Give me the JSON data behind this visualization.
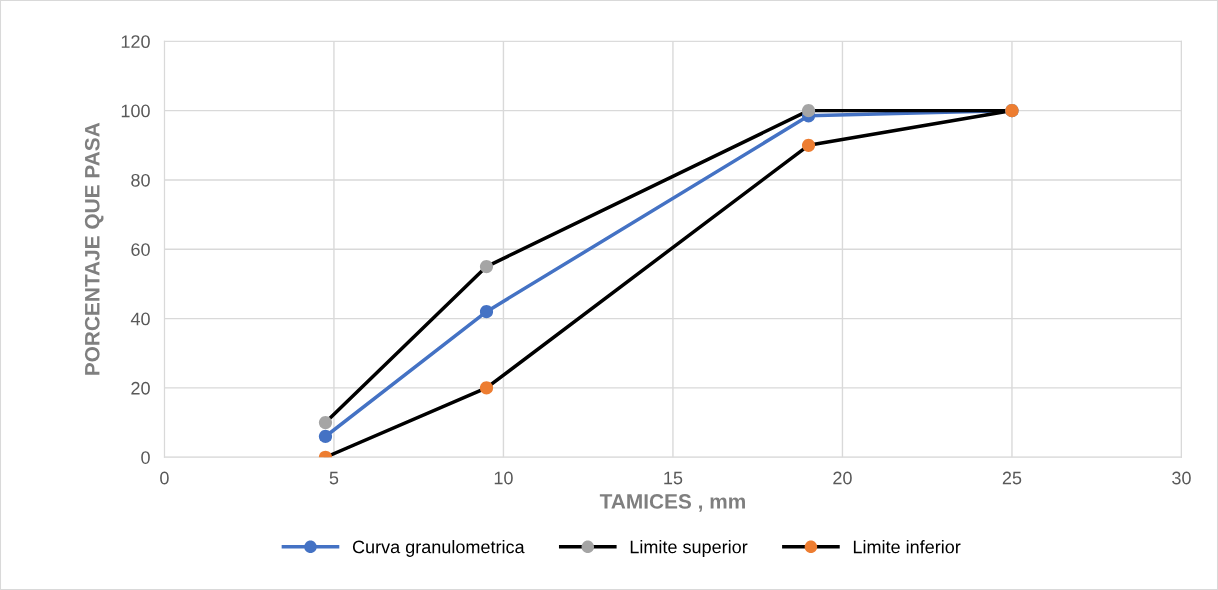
{
  "chart_data": {
    "type": "line",
    "xlabel": "TAMICES , mm",
    "ylabel": "PORCENTAJE QUE PASA",
    "x": [
      4.75,
      9.5,
      19,
      25
    ],
    "series": [
      {
        "name": "Curva granulometrica",
        "color": "#4472c4",
        "colors": [
          "#4472c4",
          "#4472c4",
          "#4472c4",
          "#4472c4"
        ],
        "values": [
          6,
          42,
          98.5,
          100
        ]
      },
      {
        "name": "Limite superior",
        "color": "#000000",
        "colors": [
          "#a5a5a5",
          "#a5a5a5",
          "#a5a5a5",
          "#a5a5a5"
        ],
        "values": [
          10,
          55,
          100,
          100
        ]
      },
      {
        "name": "Limite inferior",
        "color": "#000000",
        "colors": [
          "#ed7d31",
          "#ed7d31",
          "#ed7d31",
          "#ed7d31"
        ],
        "values": [
          0,
          20,
          90,
          100
        ]
      }
    ],
    "xlim": [
      0,
      30
    ],
    "xticks": [
      0,
      5,
      10,
      15,
      20,
      25,
      30
    ],
    "ylim": [
      0,
      120
    ],
    "yticks": [
      0,
      20,
      40,
      60,
      80,
      100,
      120
    ],
    "grid": true,
    "legend": "bottom",
    "marker": "circle",
    "line_style": "solid"
  }
}
